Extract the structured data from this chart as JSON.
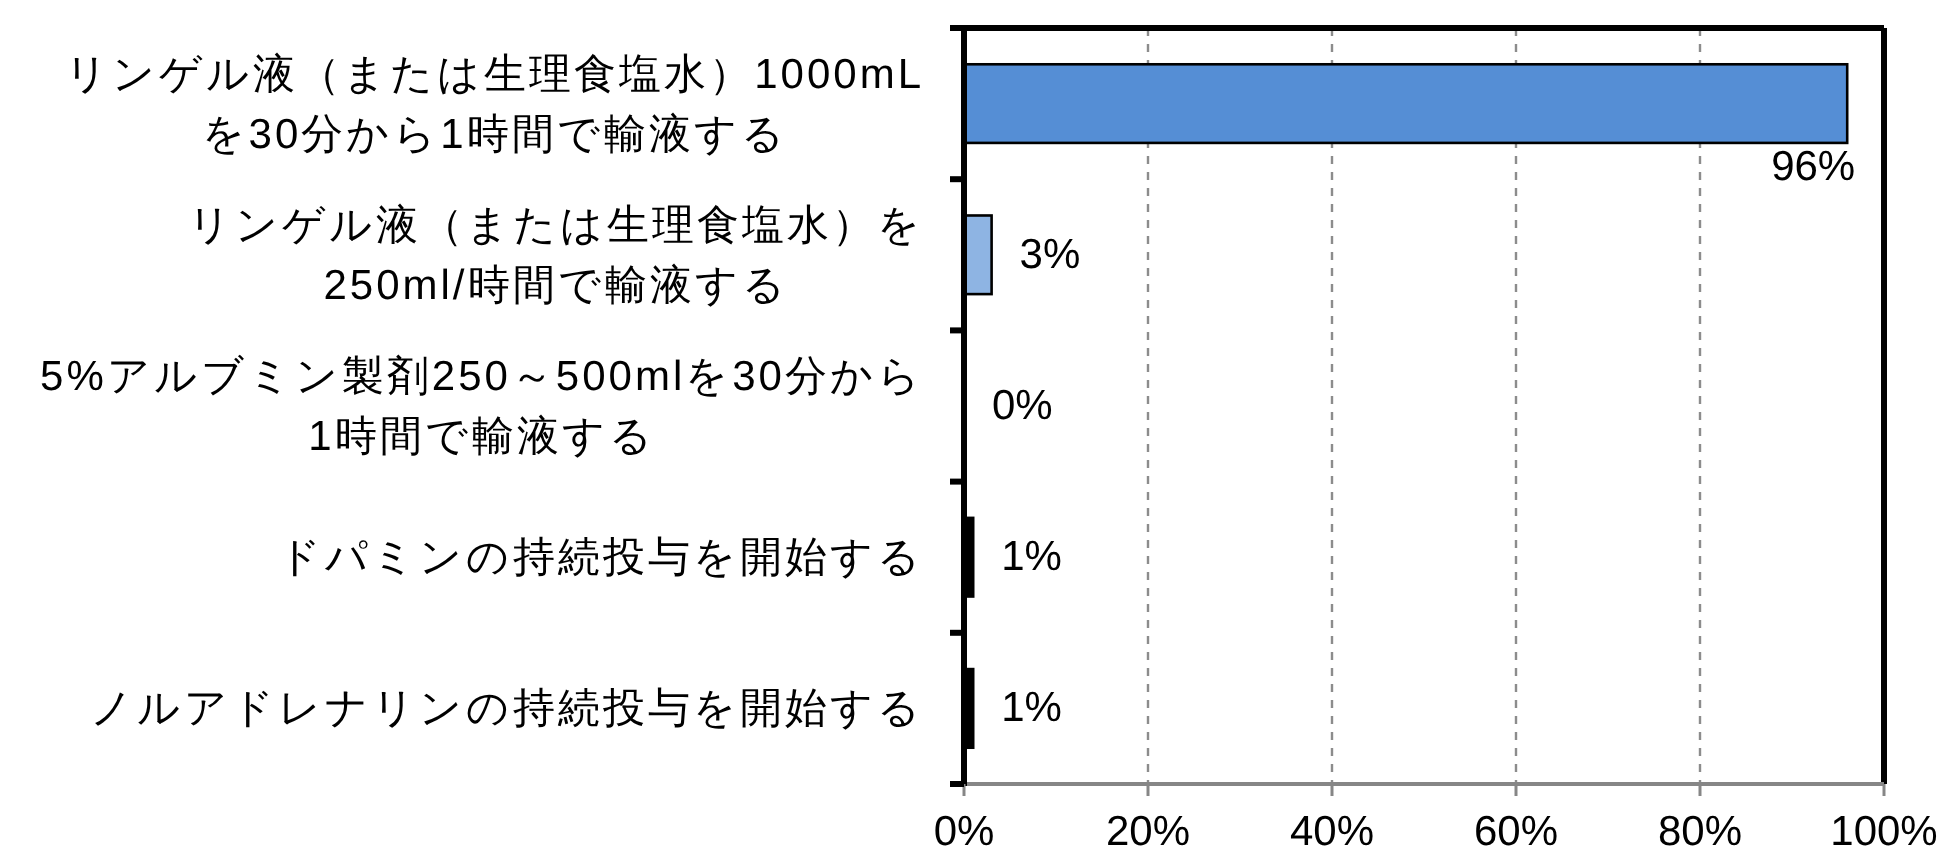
{
  "chart_data": {
    "type": "bar",
    "orientation": "horizontal",
    "categories": [
      "リンゲル液（または生理食塩水）1000mL\nを30分から1時間で輸液する",
      "リンゲル液（または生理食塩水）を\n250ml/時間で輸液する",
      "5%アルブミン製剤250～500mlを30分から\n1時間で輸液する",
      "ドパミンの持続投与を開始する",
      "ノルアドレナリンの持続投与を開始する"
    ],
    "values": [
      96,
      3,
      0,
      1,
      1
    ],
    "colors": [
      "#558ed5",
      "#8eb4e3",
      null,
      "#000000",
      "#000000"
    ],
    "value_labels": [
      "96%",
      "3%",
      "0%",
      "1%",
      "1%"
    ],
    "xlim": [
      0,
      100
    ],
    "xticks": [
      {
        "value": 0,
        "label": "0%"
      },
      {
        "value": 20,
        "label": "20%"
      },
      {
        "value": 40,
        "label": "40%"
      },
      {
        "value": 60,
        "label": "60%"
      },
      {
        "value": 80,
        "label": "80%"
      },
      {
        "value": 100,
        "label": "100%"
      }
    ],
    "grid": "x"
  }
}
